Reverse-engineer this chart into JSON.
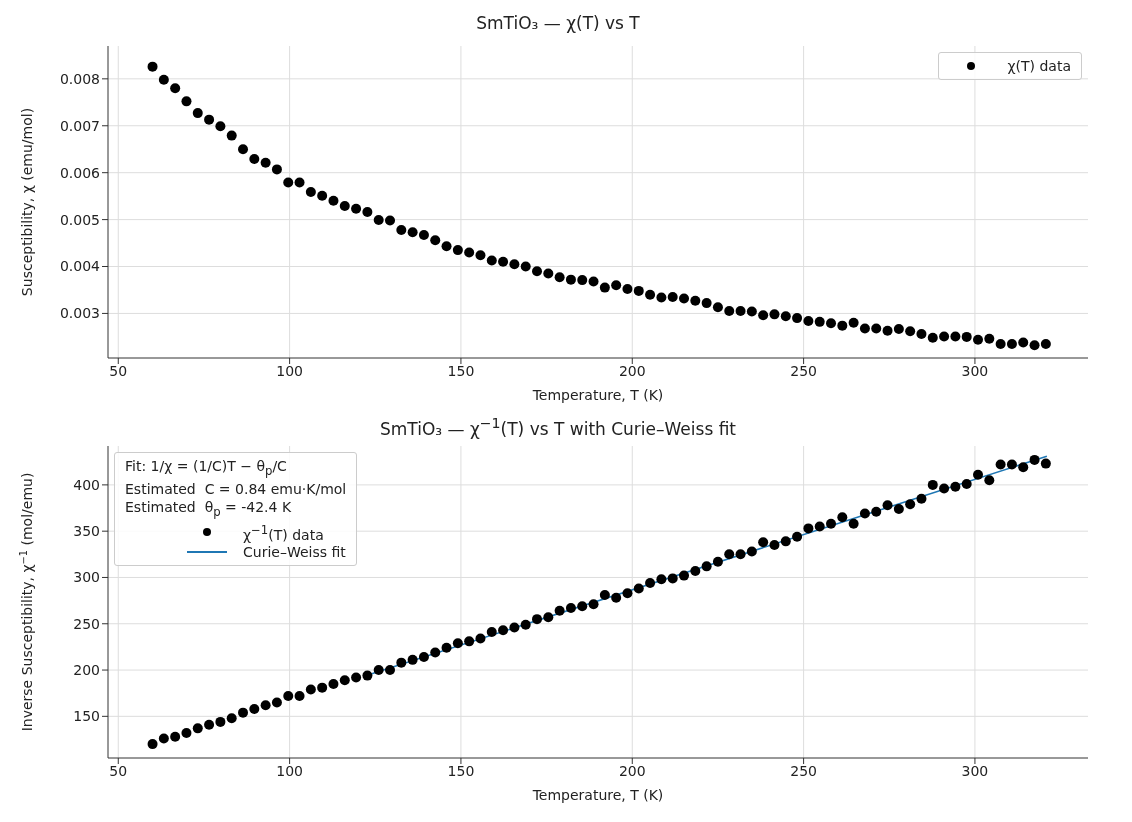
{
  "chart_data": [
    {
      "type": "scatter",
      "title": "SmTiO₃ — χ(T) vs T",
      "xlabel": "Temperature, T (K)",
      "ylabel": "Susceptibility, χ (emu/mol)",
      "x": [
        60,
        63.3,
        66.6,
        69.9,
        73.2,
        76.5,
        79.8,
        83.1,
        86.4,
        89.7,
        93,
        96.3,
        99.6,
        102.9,
        106.2,
        109.5,
        112.8,
        116.1,
        119.4,
        122.7,
        126,
        129.3,
        132.6,
        135.9,
        139.2,
        142.5,
        145.8,
        149.1,
        152.4,
        155.7,
        159,
        162.3,
        165.6,
        168.9,
        172.2,
        175.5,
        178.8,
        182.1,
        185.4,
        188.7,
        192,
        195.3,
        198.6,
        201.9,
        205.2,
        208.5,
        211.8,
        215.1,
        218.4,
        221.7,
        225,
        228.3,
        231.6,
        234.9,
        238.2,
        241.5,
        244.8,
        248.1,
        251.4,
        254.7,
        258,
        261.3,
        264.6,
        267.9,
        271.2,
        274.5,
        277.8,
        281.1,
        284.4,
        287.7,
        291,
        294.3,
        297.6,
        300.9,
        304.2,
        307.5,
        310.8,
        314.1,
        317.4,
        320.7
      ],
      "series": [
        {
          "name": "χ(T) data",
          "color": "#000000",
          "marker": "circle",
          "values": [
            0.00826,
            0.00798,
            0.0078,
            0.00752,
            0.00727,
            0.00713,
            0.00699,
            0.00679,
            0.0065,
            0.00629,
            0.00621,
            0.00607,
            0.00579,
            0.00579,
            0.00559,
            0.00551,
            0.0054,
            0.00529,
            0.00523,
            0.00516,
            0.00499,
            0.00498,
            0.00478,
            0.00473,
            0.00467,
            0.00456,
            0.00443,
            0.00435,
            0.0043,
            0.00424,
            0.00413,
            0.0041,
            0.00405,
            0.004,
            0.0039,
            0.00385,
            0.00377,
            0.00372,
            0.00371,
            0.00368,
            0.00355,
            0.0036,
            0.00352,
            0.00348,
            0.0034,
            0.00334,
            0.00335,
            0.00332,
            0.00327,
            0.00322,
            0.00313,
            0.00305,
            0.00305,
            0.00304,
            0.00296,
            0.00298,
            0.00294,
            0.0029,
            0.00284,
            0.00282,
            0.00279,
            0.00274,
            0.0028,
            0.00268,
            0.00268,
            0.00263,
            0.00267,
            0.00262,
            0.00256,
            0.00248,
            0.00251,
            0.00251,
            0.0025,
            0.00244,
            0.00246,
            0.00235,
            0.00235,
            0.00238,
            0.00232,
            0.00235
          ]
        }
      ],
      "xlim": [
        47,
        333
      ],
      "xticks": [
        50,
        100,
        150,
        200,
        250,
        300
      ],
      "ylim": [
        0.00205,
        0.0087
      ],
      "yticks": [
        0.003,
        0.004,
        0.005,
        0.006,
        0.007,
        0.008
      ],
      "grid": true,
      "legend": "top right"
    },
    {
      "type": "scatter",
      "title": "SmTiO₃ — χ$^{−1}$(T) vs T with Curie–Weiss fit",
      "xlabel": "Temperature, T (K)",
      "ylabel": "Inverse Susceptibility, χ$^{−1}$ (mol/emu)",
      "annotations": [
        "Fit: 1/χ = (1/C)T − θ$_{p}$/C",
        "Estimated  C = 0.84 emu·K/mol",
        "Estimated  θ$_{p}$ = -42.4 K"
      ],
      "x": [
        60,
        63.3,
        66.6,
        69.9,
        73.2,
        76.5,
        79.8,
        83.1,
        86.4,
        89.7,
        93,
        96.3,
        99.6,
        102.9,
        106.2,
        109.5,
        112.8,
        116.1,
        119.4,
        122.7,
        126,
        129.3,
        132.6,
        135.9,
        139.2,
        142.5,
        145.8,
        149.1,
        152.4,
        155.7,
        159,
        162.3,
        165.6,
        168.9,
        172.2,
        175.5,
        178.8,
        182.1,
        185.4,
        188.7,
        192,
        195.3,
        198.6,
        201.9,
        205.2,
        208.5,
        211.8,
        215.1,
        218.4,
        221.7,
        225,
        228.3,
        231.6,
        234.9,
        238.2,
        241.5,
        244.8,
        248.1,
        251.4,
        254.7,
        258,
        261.3,
        264.6,
        267.9,
        271.2,
        274.5,
        277.8,
        281.1,
        284.4,
        287.7,
        291,
        294.3,
        297.6,
        300.9,
        304.2,
        307.5,
        310.8,
        314.1,
        317.4,
        320.7
      ],
      "series": [
        {
          "name": "χ$^{−1}$(T) data",
          "color": "#000000",
          "marker": "circle",
          "values": [
            120,
            126,
            128,
            132,
            137,
            141,
            144,
            148,
            154,
            158,
            162,
            165,
            172,
            172,
            179,
            181,
            185,
            189,
            192,
            194,
            200,
            200,
            208,
            211,
            214,
            219,
            224,
            229,
            231,
            234,
            241,
            243,
            246,
            249,
            255,
            257,
            264,
            267,
            269,
            271,
            281,
            278,
            283,
            288,
            294,
            298,
            299,
            302,
            307,
            312,
            317,
            325,
            325,
            328,
            338,
            335,
            339,
            344,
            353,
            355,
            358,
            365,
            358,
            369,
            371,
            378,
            374,
            379,
            385,
            400,
            396,
            398,
            401,
            411,
            405,
            422,
            422,
            419,
            427,
            423
          ]
        },
        {
          "name": "Curie–Weiss fit",
          "type": "line",
          "color": "#1f77b4",
          "marker": "none",
          "x": [
            124,
            321
          ],
          "values": [
            196,
            431
          ]
        }
      ],
      "xlim": [
        47,
        333
      ],
      "xticks": [
        50,
        100,
        150,
        200,
        250,
        300
      ],
      "ylim": [
        105,
        442
      ],
      "yticks": [
        150,
        200,
        250,
        300,
        350,
        400
      ],
      "grid": true,
      "legend": "top left",
      "line_style": "solid"
    }
  ]
}
